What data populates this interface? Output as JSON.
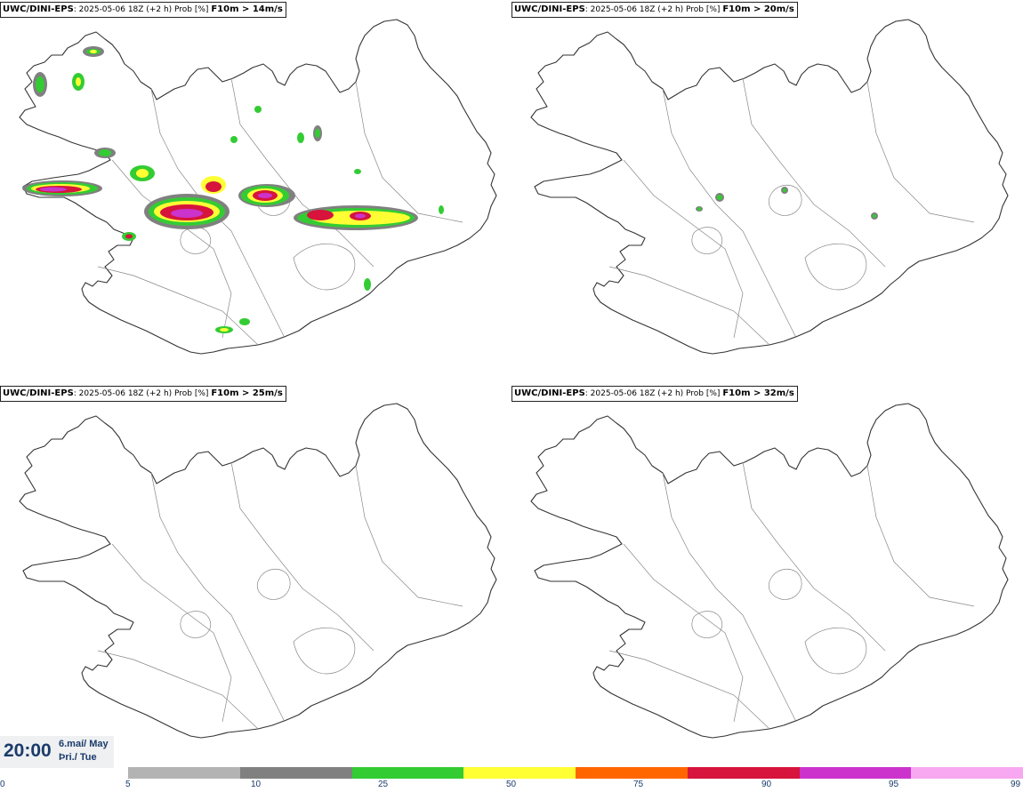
{
  "panels": [
    {
      "model": "UWC/DINI-EPS",
      "run": ": 2025-05-06 18Z (+2 h) Prob [%]",
      "field": "F10m > 14m/s"
    },
    {
      "model": "UWC/DINI-EPS",
      "run": ": 2025-05-06 18Z (+2 h) Prob [%]",
      "field": "F10m > 20m/s"
    },
    {
      "model": "UWC/DINI-EPS",
      "run": ": 2025-05-06 18Z (+2 h) Prob [%]",
      "field": "F10m > 25m/s"
    },
    {
      "model": "UWC/DINI-EPS",
      "run": ": 2025-05-06 18Z (+2 h) Prob [%]",
      "field": "F10m > 32m/s"
    }
  ],
  "valid_time": {
    "time": "20:00",
    "date": "6.maí/ May",
    "weekday": "Þri./ Tue"
  },
  "legend": {
    "ticks": [
      "0",
      "5",
      "10",
      "25",
      "50",
      "75",
      "90",
      "95",
      "99"
    ],
    "colors": [
      "#b3b3b3",
      "#808080",
      "#33cc33",
      "#ffff33",
      "#ff6600",
      "#d6143c",
      "#cc33cc",
      "#f7a8f0"
    ]
  },
  "map_colors": {
    "coast": "#333333",
    "border": "#888888"
  }
}
